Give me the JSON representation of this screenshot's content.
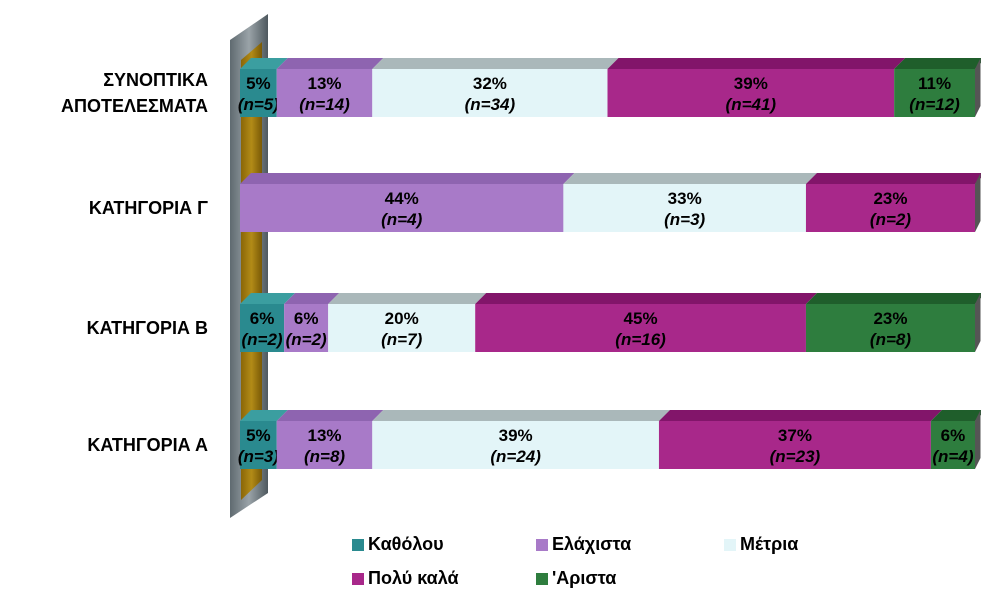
{
  "chart_data": {
    "type": "bar",
    "orientation": "horizontal-stacked-100",
    "categories": [
      "ΣΥΝΟΠΤΙΚΑ ΑΠΟΤΕΛΕΣΜΑΤΑ",
      "ΚΑΤΗΓΟΡΙΑ Γ",
      "ΚΑΤΗΓΟΡΙΑ Β",
      "ΚΑΤΗΓΟΡΙΑ Α"
    ],
    "category_lines": [
      [
        "ΣΥΝΟΠΤΙΚΑ",
        "ΑΠΟΤΕΛΕΣΜΑΤΑ"
      ],
      [
        "ΚΑΤΗΓΟΡΙΑ Γ"
      ],
      [
        "ΚΑΤΗΓΟΡΙΑ Β"
      ],
      [
        "ΚΑΤΗΓΟΡΙΑ Α"
      ]
    ],
    "series": [
      {
        "name": "Καθόλου",
        "color": "#2a8a8f",
        "top_color": "#3b9ea0",
        "values": [
          5,
          0,
          6,
          5
        ],
        "counts": [
          5,
          0,
          2,
          3
        ]
      },
      {
        "name": "Ελάχιστα",
        "color": "#a87ac8",
        "top_color": "#8e64b0",
        "values": [
          13,
          44,
          6,
          13
        ],
        "counts": [
          14,
          4,
          2,
          8
        ]
      },
      {
        "name": "Μέτρια",
        "color": "#e3f5f8",
        "top_color": "#aab8ba",
        "values": [
          32,
          33,
          20,
          39
        ],
        "counts": [
          34,
          3,
          7,
          24
        ]
      },
      {
        "name": "Πολύ καλά",
        "color": "#a8288a",
        "top_color": "#82156a",
        "values": [
          39,
          23,
          45,
          37
        ],
        "counts": [
          41,
          2,
          16,
          23
        ]
      },
      {
        "name": "'Αριστα",
        "color": "#2e7d3e",
        "top_color": "#1f5e2b",
        "values": [
          11,
          0,
          23,
          6
        ],
        "counts": [
          12,
          0,
          8,
          4
        ]
      }
    ],
    "label_format": {
      "percent_suffix": "%",
      "count_prefix": "(n=",
      "count_suffix": ")"
    },
    "legend": {
      "position": "bottom"
    },
    "xlim": [
      0,
      100
    ],
    "grid": false
  }
}
